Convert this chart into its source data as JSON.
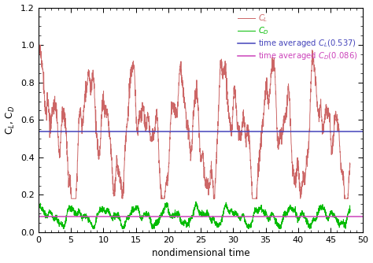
{
  "cl_avg": 0.537,
  "cd_avg": 0.086,
  "cl_color": "#CC6666",
  "cd_color": "#00BB00",
  "cl_avg_color": "#4444BB",
  "cd_avg_color": "#CC44BB",
  "xlabel": "nondimensional time",
  "ylabel": "C$_L$, C$_D$",
  "xlim": [
    0,
    50
  ],
  "ylim": [
    0,
    1.2
  ],
  "legend_cl": "$C_L$",
  "legend_cd": "$C_D$",
  "legend_cl_avg": "time averaged $C_L$(0.537)",
  "legend_cd_avg": "time averaged $C_D$(0.086)",
  "xticks": [
    0,
    5,
    10,
    15,
    20,
    25,
    30,
    35,
    40,
    45,
    50
  ],
  "yticks": [
    0,
    0.2,
    0.4,
    0.6,
    0.8,
    1.0,
    1.2
  ],
  "bg_color": "#FFFFFF"
}
